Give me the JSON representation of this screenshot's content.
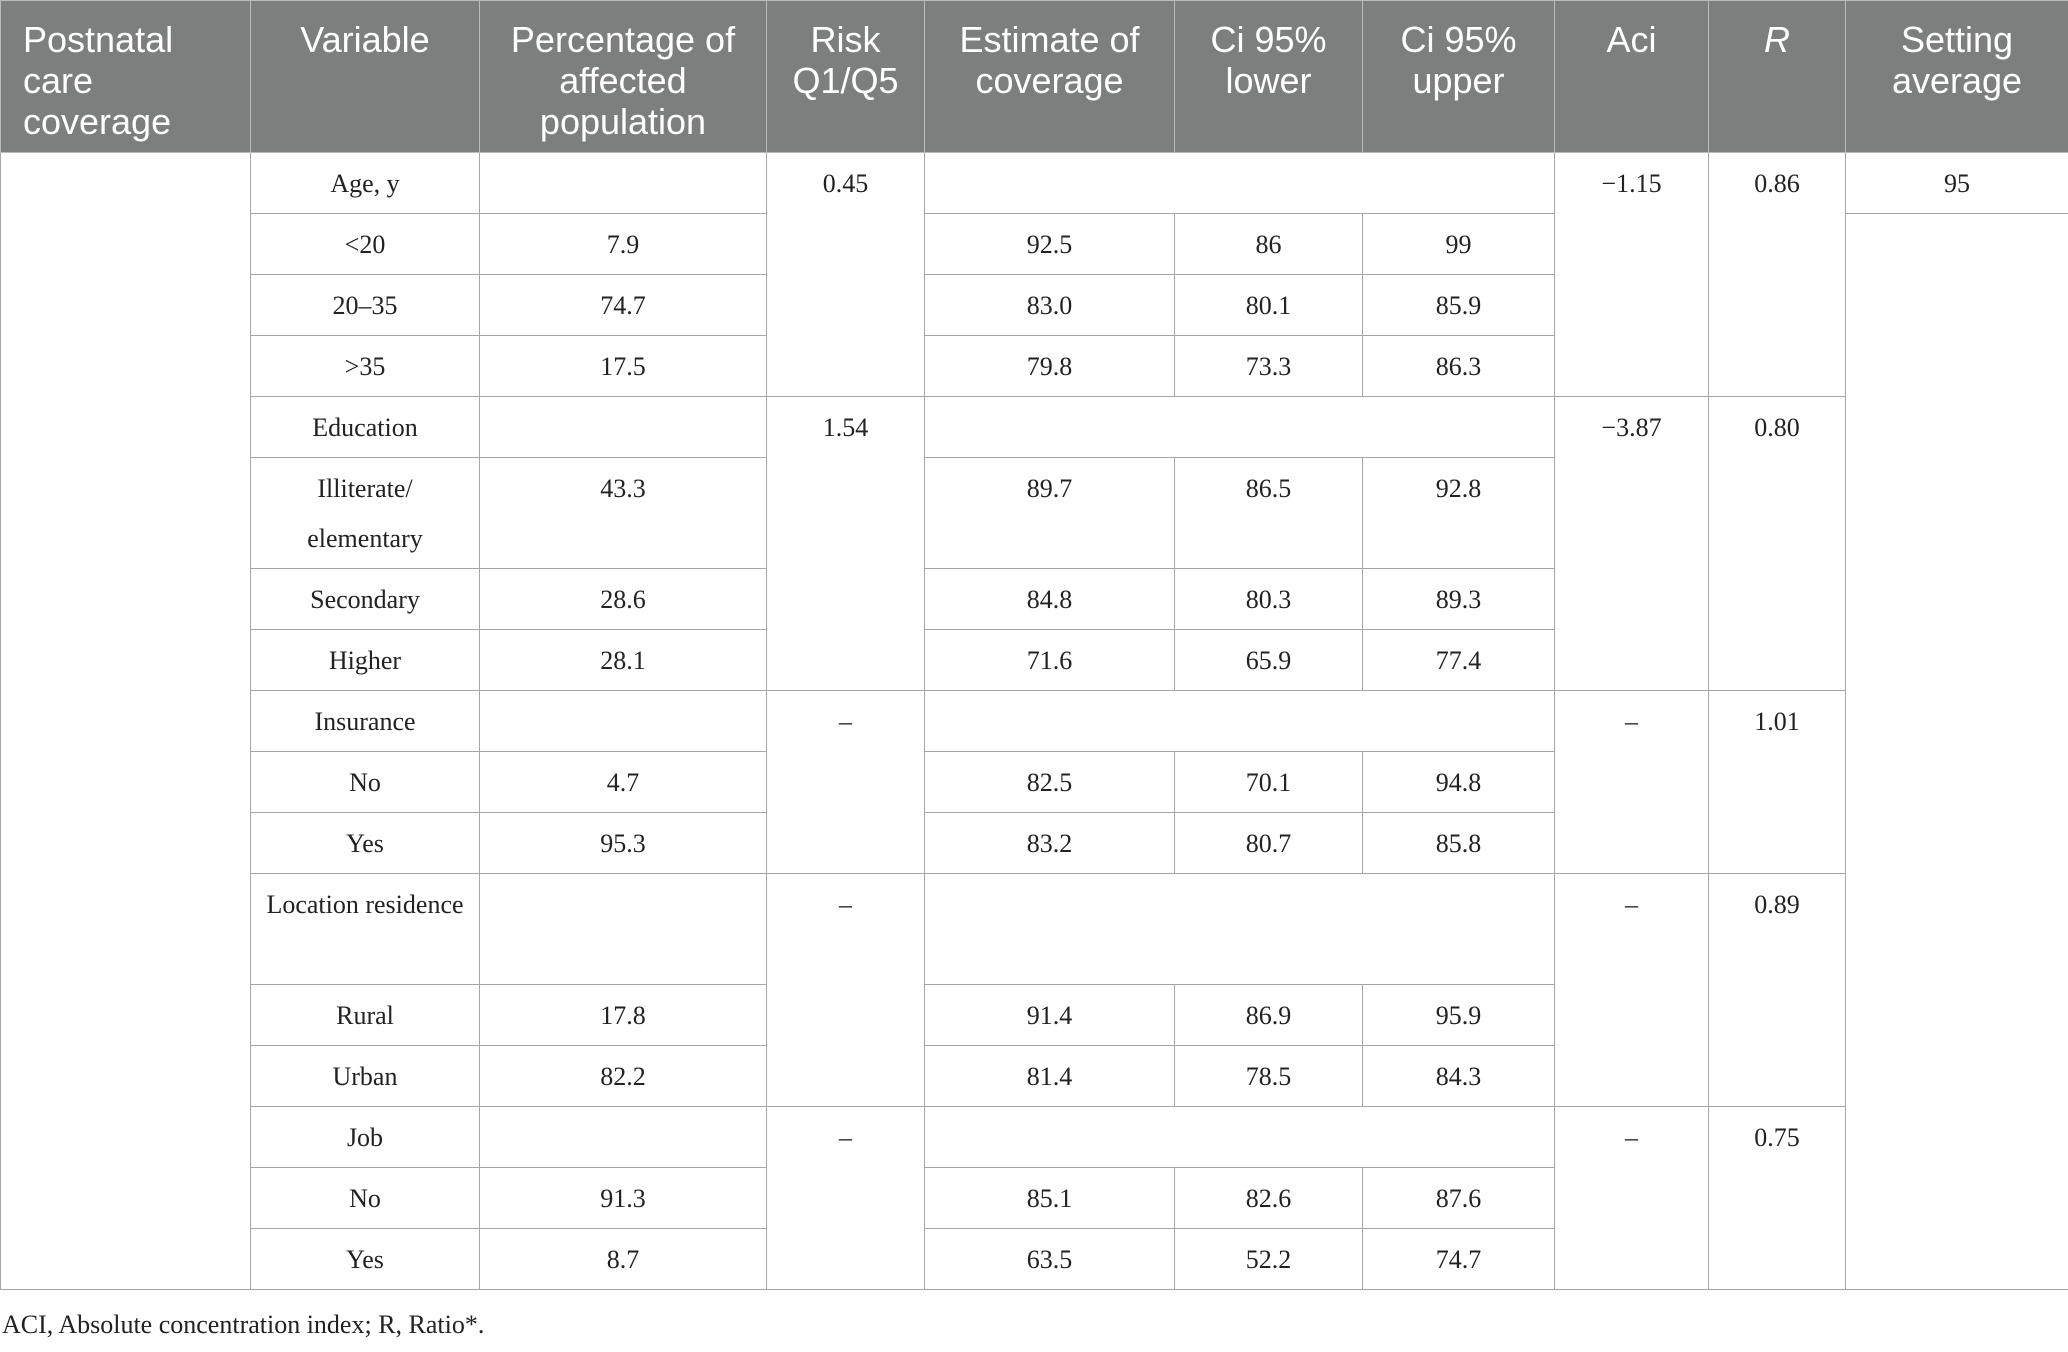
{
  "headers": {
    "coverage": "Postnatal care coverage",
    "variable": "Variable",
    "percentage": "Percentage of affected population",
    "risk": "Risk Q1/Q5",
    "estimate": "Estimate of coverage",
    "ci_lower": "Ci 95% lower",
    "ci_upper": "Ci 95% upper",
    "aci": "Aci",
    "r": "R",
    "setting": "Setting average"
  },
  "setting_average": "95",
  "groups": [
    {
      "label": "Age, y",
      "risk": "0.45",
      "aci": "−1.15",
      "r": "0.86",
      "rows": [
        {
          "label": "<20",
          "pct": "7.9",
          "est": "92.5",
          "lo": "86",
          "hi": "99"
        },
        {
          "label": "20–35",
          "pct": "74.7",
          "est": "83.0",
          "lo": "80.1",
          "hi": "85.9"
        },
        {
          "label": ">35",
          "pct": "17.5",
          "est": "79.8",
          "lo": "73.3",
          "hi": "86.3"
        }
      ]
    },
    {
      "label": "Education",
      "risk": "1.54",
      "aci": "−3.87",
      "r": "0.80",
      "rows": [
        {
          "label": "Illiterate/ elementary",
          "pct": "43.3",
          "est": "89.7",
          "lo": "86.5",
          "hi": "92.8"
        },
        {
          "label": "Secondary",
          "pct": "28.6",
          "est": "84.8",
          "lo": "80.3",
          "hi": "89.3"
        },
        {
          "label": "Higher",
          "pct": "28.1",
          "est": "71.6",
          "lo": "65.9",
          "hi": "77.4"
        }
      ]
    },
    {
      "label": "Insurance",
      "risk": "–",
      "aci": "–",
      "r": "1.01",
      "rows": [
        {
          "label": "No",
          "pct": "4.7",
          "est": "82.5",
          "lo": "70.1",
          "hi": "94.8"
        },
        {
          "label": "Yes",
          "pct": "95.3",
          "est": "83.2",
          "lo": "80.7",
          "hi": "85.8"
        }
      ]
    },
    {
      "label": "Location residence",
      "risk": "–",
      "aci": "–",
      "r": "0.89",
      "rows": [
        {
          "label": "Rural",
          "pct": "17.8",
          "est": "91.4",
          "lo": "86.9",
          "hi": "95.9"
        },
        {
          "label": "Urban",
          "pct": "82.2",
          "est": "81.4",
          "lo": "78.5",
          "hi": "84.3"
        }
      ]
    },
    {
      "label": "Job",
      "risk": "–",
      "aci": "–",
      "r": "0.75",
      "rows": [
        {
          "label": "No",
          "pct": "91.3",
          "est": "85.1",
          "lo": "82.6",
          "hi": "87.6"
        },
        {
          "label": "Yes",
          "pct": "8.7",
          "est": "63.5",
          "lo": "52.2",
          "hi": "74.7"
        }
      ]
    }
  ],
  "footnote": "ACI, Absolute concentration index; R, Ratio*."
}
